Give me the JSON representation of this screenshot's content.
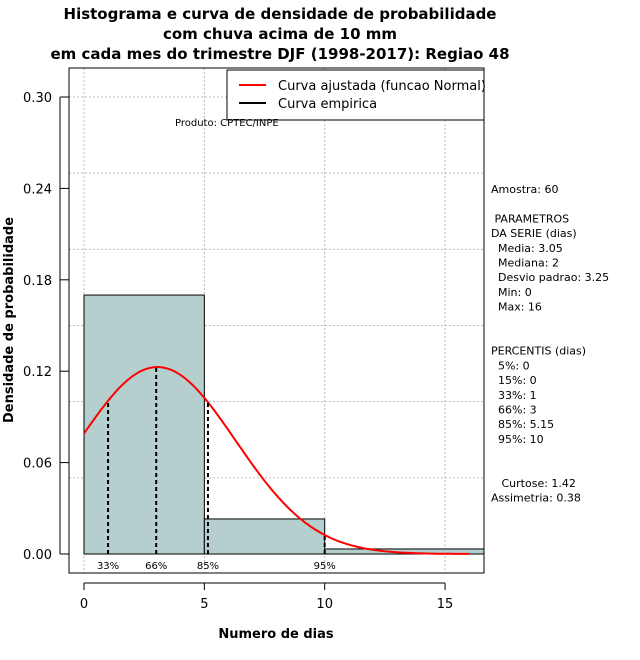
{
  "chart_data": {
    "type": "bar",
    "title": [
      "Histograma e curva de densidade de probabilidade",
      "com chuva acima de 10 mm",
      "em cada mes do trimestre DJF (1998-2017): Regiao 48"
    ],
    "xlabel": "Numero de dias",
    "ylabel": "Densidade de probabilidade",
    "xlim": [
      -0.6,
      16.67
    ],
    "ylim": [
      0,
      0.3
    ],
    "xticks": [
      0,
      5,
      10,
      15
    ],
    "yticks": [
      0.0,
      0.06,
      0.12,
      0.18,
      0.24,
      0.3
    ],
    "ytick_labels": [
      "0.00",
      "0.06",
      "0.12",
      "0.18",
      "0.24",
      "0.30"
    ],
    "grid": true,
    "bins": [
      {
        "from": 0,
        "to": 5,
        "density": 0.17
      },
      {
        "from": 5,
        "to": 10,
        "density": 0.023
      },
      {
        "from": 10,
        "to": 20,
        "density": 0.0033
      }
    ],
    "bar_color": "#b5cfcf",
    "normal_curve": {
      "mean": 3.05,
      "sd": 3.25,
      "from": 0,
      "to": 16,
      "color": "#ff0000"
    },
    "percentile_lines": [
      {
        "label": "33%",
        "x": 1
      },
      {
        "label": "66%",
        "x": 3
      },
      {
        "label": "85%",
        "x": 5.15
      },
      {
        "label": "95%",
        "x": 10
      }
    ],
    "legend": {
      "position": "top-right",
      "entries": [
        {
          "label": "Curva ajustada (funcao Normal)",
          "color": "#ff0000"
        },
        {
          "label": "Curva empirica",
          "color": "#000000"
        }
      ]
    },
    "credit": "Produto: CPTEC/INPE",
    "stats": [
      "Amostra: 60",
      "",
      " PARAMETROS",
      "DA SERIE (dias)",
      "  Media: 3.05",
      "  Mediana: 2",
      "  Desvio padrao: 3.25",
      "  Min: 0",
      "  Max: 16",
      "",
      "",
      "PERCENTIS (dias)",
      "  5%: 0",
      "  15%: 0",
      "  33%: 1",
      "  66%: 3",
      "  85%: 5.15",
      "  95%: 10",
      "",
      "",
      "   Curtose: 1.42",
      "Assimetria: 0.38"
    ]
  }
}
